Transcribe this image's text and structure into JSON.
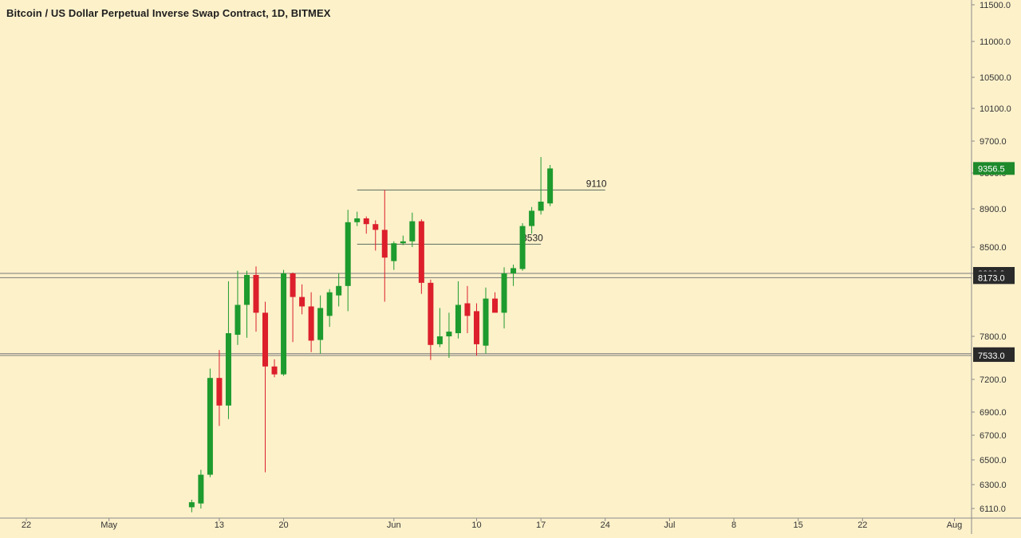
{
  "chart_data": {
    "type": "candlestick",
    "title": "Bitcoin / US Dollar Perpetual Inverse Swap Contract, 1D, BITMEX",
    "ylim": [
      6100,
      11600
    ],
    "y_ticks": [
      "11500.0",
      "11000.0",
      "10500.0",
      "10100.0",
      "9700.0",
      "9300.0",
      "8900.0",
      "8500.0",
      "8200.0",
      "7800.0",
      "7200.0",
      "6900.0",
      "6700.0",
      "6500.0",
      "6300.0",
      "6110.0"
    ],
    "x_ticks": [
      "22",
      "May",
      "13",
      "20",
      "Jun",
      "10",
      "17",
      "24",
      "Jul",
      "8",
      "15",
      "22",
      "Aug"
    ],
    "price_labels": [
      {
        "text": "9356.5",
        "value": 9356.5,
        "style": "last"
      },
      {
        "text": "8200.0",
        "value": 8200,
        "style": "level"
      },
      {
        "text": "8173.0",
        "value": 8173,
        "style": "level"
      },
      {
        "text": "7558.0",
        "value": 7558,
        "style": "level"
      },
      {
        "text": "7533.0",
        "value": 7533,
        "style": "level"
      }
    ],
    "horizontal_levels": [
      8200,
      8173,
      7558,
      7533
    ],
    "trend_lines": [
      {
        "label": "9110",
        "value": 9110,
        "from": "May 28",
        "to": "Jun 24"
      },
      {
        "label": "8530",
        "value": 8530,
        "from": "May 28",
        "to": "Jun 17"
      }
    ],
    "candles": [
      {
        "date": "May 10",
        "open": 6120,
        "high": 6180,
        "low": 6080,
        "close": 6160
      },
      {
        "date": "May 11",
        "open": 6150,
        "high": 6420,
        "low": 6110,
        "close": 6380
      },
      {
        "date": "May 12",
        "open": 6380,
        "high": 7350,
        "low": 6360,
        "close": 7220
      },
      {
        "date": "May 13",
        "open": 7220,
        "high": 7610,
        "low": 6780,
        "close": 6960
      },
      {
        "date": "May 14",
        "open": 6960,
        "high": 8150,
        "low": 6840,
        "close": 7820
      },
      {
        "date": "May 15",
        "open": 7810,
        "high": 8230,
        "low": 7680,
        "close": 8000
      },
      {
        "date": "May 16",
        "open": 8000,
        "high": 8230,
        "low": 7780,
        "close": 8190
      },
      {
        "date": "May 17",
        "open": 8190,
        "high": 8280,
        "low": 7830,
        "close": 7950
      },
      {
        "date": "May 18",
        "open": 7950,
        "high": 8020,
        "low": 6400,
        "close": 7380
      },
      {
        "date": "May 19",
        "open": 7380,
        "high": 7480,
        "low": 7230,
        "close": 7270
      },
      {
        "date": "May 20",
        "open": 7270,
        "high": 8240,
        "low": 7250,
        "close": 8200
      },
      {
        "date": "May 21",
        "open": 8200,
        "high": 8210,
        "low": 7720,
        "close": 8050
      },
      {
        "date": "May 22",
        "open": 8050,
        "high": 8130,
        "low": 7940,
        "close": 7990
      },
      {
        "date": "May 23",
        "open": 7990,
        "high": 8080,
        "low": 7580,
        "close": 7740
      },
      {
        "date": "May 24",
        "open": 7750,
        "high": 8060,
        "low": 7560,
        "close": 7980
      },
      {
        "date": "May 25",
        "open": 7930,
        "high": 8100,
        "low": 7860,
        "close": 8080
      },
      {
        "date": "May 26",
        "open": 8060,
        "high": 8200,
        "low": 7990,
        "close": 8120
      },
      {
        "date": "May 27",
        "open": 8120,
        "high": 8890,
        "low": 7960,
        "close": 8760
      },
      {
        "date": "May 28",
        "open": 8760,
        "high": 8870,
        "low": 8720,
        "close": 8800
      },
      {
        "date": "May 29",
        "open": 8800,
        "high": 8820,
        "low": 8640,
        "close": 8740
      },
      {
        "date": "May 30",
        "open": 8740,
        "high": 8780,
        "low": 8460,
        "close": 8680
      },
      {
        "date": "May 31",
        "open": 8680,
        "high": 9110,
        "low": 8020,
        "close": 8380
      },
      {
        "date": "Jun 1",
        "open": 8340,
        "high": 8560,
        "low": 8240,
        "close": 8540
      },
      {
        "date": "Jun 2",
        "open": 8540,
        "high": 8620,
        "low": 8520,
        "close": 8560
      },
      {
        "date": "Jun 3",
        "open": 8560,
        "high": 8860,
        "low": 8500,
        "close": 8770
      },
      {
        "date": "Jun 4",
        "open": 8770,
        "high": 8790,
        "low": 8070,
        "close": 8140
      },
      {
        "date": "Jun 5",
        "open": 8140,
        "high": 8160,
        "low": 7470,
        "close": 7680
      },
      {
        "date": "Jun 6",
        "open": 7690,
        "high": 7980,
        "low": 7650,
        "close": 7800
      },
      {
        "date": "Jun 7",
        "open": 7800,
        "high": 7950,
        "low": 7500,
        "close": 7830
      },
      {
        "date": "Jun 8",
        "open": 7820,
        "high": 8150,
        "low": 7770,
        "close": 8000
      },
      {
        "date": "Jun 9",
        "open": 8010,
        "high": 8120,
        "low": 7820,
        "close": 7930
      },
      {
        "date": "Jun 10",
        "open": 7960,
        "high": 8010,
        "low": 7530,
        "close": 7690
      },
      {
        "date": "Jun 11",
        "open": 7670,
        "high": 8110,
        "low": 7560,
        "close": 8040
      },
      {
        "date": "Jun 12",
        "open": 8040,
        "high": 8080,
        "low": 7960,
        "close": 7950
      },
      {
        "date": "Jun 13",
        "open": 7950,
        "high": 8270,
        "low": 7850,
        "close": 8200
      },
      {
        "date": "Jun 14",
        "open": 8200,
        "high": 8300,
        "low": 8120,
        "close": 8260
      },
      {
        "date": "Jun 15",
        "open": 8250,
        "high": 8750,
        "low": 8230,
        "close": 8720
      },
      {
        "date": "Jun 16",
        "open": 8720,
        "high": 8920,
        "low": 8640,
        "close": 8880
      },
      {
        "date": "Jun 17",
        "open": 8880,
        "high": 9500,
        "low": 8840,
        "close": 8980
      },
      {
        "date": "Jun 18",
        "open": 8960,
        "high": 9400,
        "low": 8930,
        "close": 9356.5
      }
    ]
  }
}
